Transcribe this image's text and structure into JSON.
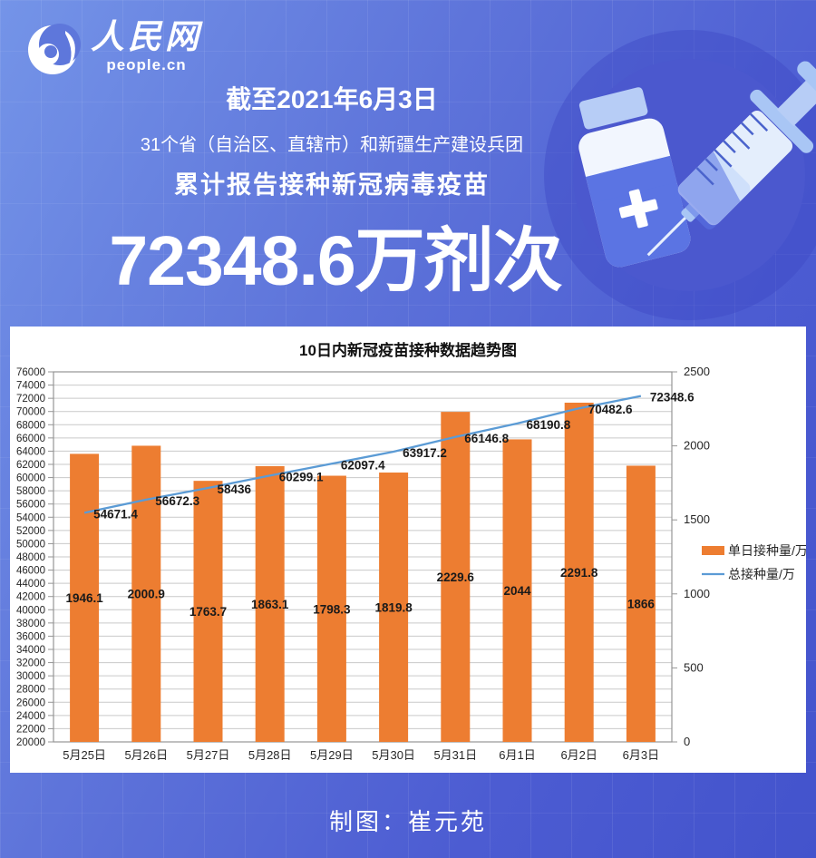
{
  "page": {
    "bg_gradient_start": "#7494e8",
    "bg_gradient_end": "#4353cc"
  },
  "logo": {
    "name": "人民网",
    "sub": "people.cn"
  },
  "header": {
    "date_line": "截至2021年6月3日",
    "scope_line": "31个省（自治区、直辖市）和新疆生产建设兵团",
    "title_line": "累计报告接种新冠病毒疫苗",
    "headline_number": "72348.6万剂次"
  },
  "footer": {
    "credit": "制图：崔元苑"
  },
  "chart_data": {
    "type": "bar",
    "subtype": "bar-line-combo",
    "title": "10日内新冠疫苗接种数据趋势图",
    "categories": [
      "5月25日",
      "5月26日",
      "5月27日",
      "5月28日",
      "5月29日",
      "5月30日",
      "5月31日",
      "6月1日",
      "6月2日",
      "6月3日"
    ],
    "series": [
      {
        "name": "单日接种量/万",
        "type": "bar",
        "axis": "right",
        "color": "#ED7D31",
        "values": [
          1946.1,
          2000.9,
          1763.7,
          1863.1,
          1798.3,
          1819.8,
          2229.6,
          2044,
          2291.8,
          1866
        ]
      },
      {
        "name": "总接种量/万",
        "type": "line",
        "axis": "left",
        "color": "#5B9BD5",
        "values": [
          54671.4,
          56672.3,
          58436,
          60299.1,
          62097.4,
          63917.2,
          66146.8,
          68190.8,
          70482.6,
          72348.6
        ]
      }
    ],
    "left_axis": {
      "min": 20000,
      "max": 76000,
      "step": 2000
    },
    "right_axis": {
      "min": 0,
      "max": 2500,
      "step": 500
    },
    "grid": true,
    "legend_position": "right",
    "data_labels": true,
    "label_color": "#1a1a1a",
    "axis_text_color": "#262626",
    "grid_color": "#c9c9c9",
    "border_color": "#959595"
  }
}
